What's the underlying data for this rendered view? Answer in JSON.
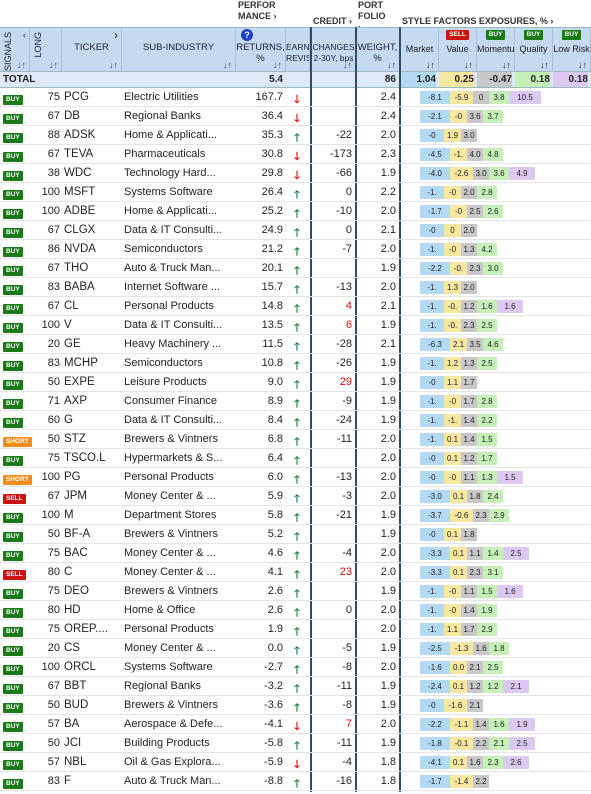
{
  "groups": {
    "performance": "PERFOR MANCE",
    "credit": "CREDIT",
    "portfolio": "PORT FOLIO",
    "style": "STYLE FACTORS EXPOSURES, %"
  },
  "headers": {
    "signals": "SIGNALS",
    "long": "LONG",
    "ticker": "TICKER",
    "sub_industry": "SUB-INDUSTRY",
    "returns": "RETURNS, %",
    "earnings": "EARNING REVISIO",
    "changes": "CHANGES 2-30Y, bps",
    "weight": "WEIGHT, %",
    "sort": "↓↑",
    "help": "?"
  },
  "factors": [
    {
      "name": "Market",
      "badge": ""
    },
    {
      "name": "Value",
      "badge": "SELL"
    },
    {
      "name": "Momentum",
      "badge": "BUY"
    },
    {
      "name": "Quality",
      "badge": "BUY"
    },
    {
      "name": "Low Risk",
      "badge": "BUY"
    }
  ],
  "total": {
    "label": "TOTAL",
    "returns": "5.4",
    "weight": "86",
    "factors": [
      "1.04",
      "0.25",
      "-0.47",
      "0.18",
      "0.18"
    ]
  },
  "colors": {
    "market": "#b3d9f5",
    "value": "#f7e7a1",
    "momentum": "#c8c8c8",
    "quality": "#c5f0b8",
    "lowrisk": "#dcc8f0"
  },
  "rows": [
    {
      "signal": "BUY",
      "long": "75",
      "ticker": "PCG",
      "sub": "Electric Utilities",
      "ret": "167.7",
      "rev": "down",
      "chg": "",
      "wt": "2.4",
      "f": [
        "-8.1",
        "-5.9",
        "0",
        "3.8",
        "10.5"
      ]
    },
    {
      "signal": "BUY",
      "long": "67",
      "ticker": "DB",
      "sub": "Regional Banks",
      "ret": "36.4",
      "rev": "down",
      "chg": "",
      "wt": "2.4",
      "f": [
        "-2.1",
        "-0",
        "3.6",
        "3.7",
        ""
      ]
    },
    {
      "signal": "BUY",
      "long": "88",
      "ticker": "ADSK",
      "sub": "Home & Applicati...",
      "ret": "35.3",
      "rev": "up",
      "chg": "-22",
      "wt": "2.0",
      "f": [
        "-0",
        "1.9",
        "3.0",
        "",
        ""
      ]
    },
    {
      "signal": "BUY",
      "long": "67",
      "ticker": "TEVA",
      "sub": "Pharmaceuticals",
      "ret": "30.8",
      "rev": "down",
      "chg": "-173",
      "wt": "2.3",
      "f": [
        "-4.5",
        "-1.",
        "4.0",
        "4.8",
        ""
      ]
    },
    {
      "signal": "BUY",
      "long": "38",
      "ticker": "WDC",
      "sub": "Technology Hard...",
      "ret": "29.8",
      "rev": "down",
      "chg": "-66",
      "wt": "1.9",
      "f": [
        "-4.0",
        "-2.6",
        "3.0",
        "3.6",
        "4.9"
      ]
    },
    {
      "signal": "BUY",
      "long": "100",
      "ticker": "MSFT",
      "sub": "Systems Software",
      "ret": "26.4",
      "rev": "up",
      "chg": "0",
      "wt": "2.2",
      "f": [
        "-1.",
        "-0",
        "2.0",
        "2.8",
        ""
      ]
    },
    {
      "signal": "BUY",
      "long": "100",
      "ticker": "ADBE",
      "sub": "Home & Applicati...",
      "ret": "25.2",
      "rev": "up",
      "chg": "-10",
      "wt": "2.0",
      "f": [
        "-1.7",
        "-0",
        "2.5",
        "2.6",
        ""
      ]
    },
    {
      "signal": "BUY",
      "long": "67",
      "ticker": "CLGX",
      "sub": "Data & IT Consulti...",
      "ret": "24.9",
      "rev": "up",
      "chg": "0",
      "wt": "2.1",
      "f": [
        "-0",
        "0",
        "2.0",
        "",
        ""
      ]
    },
    {
      "signal": "BUY",
      "long": "86",
      "ticker": "NVDA",
      "sub": "Semiconductors",
      "ret": "21.2",
      "rev": "up",
      "chg": "-7",
      "wt": "2.0",
      "f": [
        "-1.",
        "-0",
        "1.3",
        "4.2",
        ""
      ]
    },
    {
      "signal": "BUY",
      "long": "67",
      "ticker": "THO",
      "sub": "Auto & Truck Man...",
      "ret": "20.1",
      "rev": "up",
      "chg": "",
      "wt": "1.9",
      "f": [
        "-2.2",
        "-0.",
        "2.3",
        "3.0",
        ""
      ]
    },
    {
      "signal": "BUY",
      "long": "83",
      "ticker": "BABA",
      "sub": "Internet Software ...",
      "ret": "15.7",
      "rev": "up",
      "chg": "-13",
      "wt": "2.0",
      "f": [
        "-1.",
        "1.3",
        "2.0",
        "",
        ""
      ]
    },
    {
      "signal": "BUY",
      "long": "67",
      "ticker": "CL",
      "sub": "Personal Products",
      "ret": "14.8",
      "rev": "up",
      "chg": "4",
      "wt": "2.1",
      "f": [
        "-1.",
        "-0.",
        "1.2",
        "1.6",
        "1.6"
      ]
    },
    {
      "signal": "BUY",
      "long": "100",
      "ticker": "V",
      "sub": "Data & IT Consulti...",
      "ret": "13.5",
      "rev": "up",
      "chg": "6",
      "wt": "1.9",
      "f": [
        "-1.",
        "-0.",
        "2.3",
        "2.5",
        ""
      ]
    },
    {
      "signal": "BUY",
      "long": "20",
      "ticker": "GE",
      "sub": "Heavy Machinery ...",
      "ret": "11.5",
      "rev": "up",
      "chg": "-28",
      "wt": "2.1",
      "f": [
        "-6.3",
        "2.1",
        "3.5",
        "4.6",
        ""
      ]
    },
    {
      "signal": "BUY",
      "long": "83",
      "ticker": "MCHP",
      "sub": "Semiconductors",
      "ret": "10.8",
      "rev": "up",
      "chg": "-26",
      "wt": "1.9",
      "f": [
        "-1.",
        "1.2",
        "1.3",
        "2.5",
        ""
      ]
    },
    {
      "signal": "BUY",
      "long": "50",
      "ticker": "EXPE",
      "sub": "Leisure Products",
      "ret": "9.0",
      "rev": "up",
      "chg": "29",
      "wt": "1.9",
      "f": [
        "-0",
        "1.1",
        "1.7",
        "",
        ""
      ]
    },
    {
      "signal": "BUY",
      "long": "71",
      "ticker": "AXP",
      "sub": "Consumer Finance",
      "ret": "8.9",
      "rev": "up",
      "chg": "-9",
      "wt": "1.9",
      "f": [
        "-1.",
        "-0",
        "1.7",
        "2.8",
        ""
      ]
    },
    {
      "signal": "BUY",
      "long": "60",
      "ticker": "G",
      "sub": "Data & IT Consulti...",
      "ret": "8.4",
      "rev": "up",
      "chg": "-24",
      "wt": "1.9",
      "f": [
        "-1.",
        "-1.",
        "1.4",
        "2.2",
        ""
      ]
    },
    {
      "signal": "SHORT",
      "long": "50",
      "ticker": "STZ",
      "sub": "Brewers & Vintners",
      "ret": "6.8",
      "rev": "up",
      "chg": "-11",
      "wt": "2.0",
      "f": [
        "-1.",
        "0.1",
        "1.4",
        "1.5",
        ""
      ]
    },
    {
      "signal": "BUY",
      "long": "75",
      "ticker": "TSCO.L",
      "sub": "Hypermarkets & S...",
      "ret": "6.4",
      "rev": "up",
      "chg": "",
      "wt": "2.0",
      "f": [
        "-0",
        "0.1",
        "1.2",
        "1.7",
        ""
      ]
    },
    {
      "signal": "SHORT",
      "long": "100",
      "ticker": "PG",
      "sub": "Personal Products",
      "ret": "6.0",
      "rev": "up",
      "chg": "-13",
      "wt": "2.0",
      "f": [
        "-0",
        "-0",
        "1.1",
        "1.3",
        "1.5"
      ]
    },
    {
      "signal": "SELL",
      "long": "67",
      "ticker": "JPM",
      "sub": "Money Center & ...",
      "ret": "5.9",
      "rev": "up",
      "chg": "-3",
      "wt": "2.0",
      "f": [
        "-3.0",
        "0.1",
        "1.8",
        "2.4",
        ""
      ]
    },
    {
      "signal": "BUY",
      "long": "100",
      "ticker": "M",
      "sub": "Department Stores",
      "ret": "5.8",
      "rev": "up",
      "chg": "-21",
      "wt": "1.9",
      "f": [
        "-3.7",
        "-0.6",
        "2.3",
        "2.9",
        ""
      ]
    },
    {
      "signal": "BUY",
      "long": "50",
      "ticker": "BF-A",
      "sub": "Brewers & Vintners",
      "ret": "5.2",
      "rev": "up",
      "chg": "",
      "wt": "1.9",
      "f": [
        "-0",
        "0.1",
        "1.8",
        "",
        ""
      ]
    },
    {
      "signal": "BUY",
      "long": "75",
      "ticker": "BAC",
      "sub": "Money Center & ...",
      "ret": "4.6",
      "rev": "up",
      "chg": "-4",
      "wt": "2.0",
      "f": [
        "-3.3",
        "0.1",
        "1.1",
        "1.4",
        "2.5"
      ]
    },
    {
      "signal": "SELL",
      "long": "80",
      "ticker": "C",
      "sub": "Money Center & ...",
      "ret": "4.1",
      "rev": "up",
      "chg": "23",
      "wt": "2.0",
      "f": [
        "-3.3",
        "0.1",
        "2.3",
        "3.1",
        ""
      ]
    },
    {
      "signal": "BUY",
      "long": "75",
      "ticker": "DEO",
      "sub": "Brewers & Vintners",
      "ret": "2.6",
      "rev": "up",
      "chg": "",
      "wt": "1.9",
      "f": [
        "-1.",
        "-0",
        "1.1",
        "1.5",
        "1.6"
      ]
    },
    {
      "signal": "BUY",
      "long": "80",
      "ticker": "HD",
      "sub": "Home & Office",
      "ret": "2.6",
      "rev": "up",
      "chg": "0",
      "wt": "2.0",
      "f": [
        "-1.",
        "-0",
        "1.4",
        "1.9",
        ""
      ]
    },
    {
      "signal": "BUY",
      "long": "75",
      "ticker": "OREP....",
      "sub": "Personal Products",
      "ret": "1.9",
      "rev": "up",
      "chg": "",
      "wt": "2.0",
      "f": [
        "-1.",
        "1.1",
        "1.7",
        "2.9",
        ""
      ]
    },
    {
      "signal": "BUY",
      "long": "20",
      "ticker": "CS",
      "sub": "Money Center & ...",
      "ret": "0.0",
      "rev": "up",
      "chg": "-5",
      "wt": "1.9",
      "f": [
        "-2.5",
        "-1.3",
        "1.6",
        "1.8",
        ""
      ]
    },
    {
      "signal": "BUY",
      "long": "100",
      "ticker": "ORCL",
      "sub": "Systems Software",
      "ret": "-2.7",
      "rev": "up",
      "chg": "-8",
      "wt": "2.0",
      "f": [
        "-1.6",
        "0.0",
        "2.1",
        "2.5",
        ""
      ]
    },
    {
      "signal": "BUY",
      "long": "67",
      "ticker": "BBT",
      "sub": "Regional Banks",
      "ret": "-3.2",
      "rev": "up",
      "chg": "-11",
      "wt": "1.9",
      "f": [
        "-2.4",
        "0.1",
        "1.2",
        "1.2",
        "2.1"
      ]
    },
    {
      "signal": "BUY",
      "long": "50",
      "ticker": "BUD",
      "sub": "Brewers & Vintners",
      "ret": "-3.6",
      "rev": "up",
      "chg": "-8",
      "wt": "1.9",
      "f": [
        "-0",
        "-1.6",
        "2.1",
        "",
        ""
      ]
    },
    {
      "signal": "BUY",
      "long": "57",
      "ticker": "BA",
      "sub": "Aerospace & Defe...",
      "ret": "-4.1",
      "rev": "down",
      "chg": "7",
      "wt": "2.0",
      "f": [
        "-2.2",
        "-1.1",
        "1.4",
        "1.6",
        "1.9"
      ]
    },
    {
      "signal": "BUY",
      "long": "50",
      "ticker": "JCI",
      "sub": "Building Products",
      "ret": "-5.8",
      "rev": "up",
      "chg": "-11",
      "wt": "1.9",
      "f": [
        "-1.8",
        "-0.1",
        "2.2",
        "2.1",
        "2.5"
      ]
    },
    {
      "signal": "BUY",
      "long": "57",
      "ticker": "NBL",
      "sub": "Oil & Gas Explora...",
      "ret": "-5.9",
      "rev": "down",
      "chg": "-4",
      "wt": "1.8",
      "f": [
        "-4.1",
        "0.1",
        "1.6",
        "2.3",
        "2.6"
      ]
    },
    {
      "signal": "BUY",
      "long": "83",
      "ticker": "F",
      "sub": "Auto & Truck Man...",
      "ret": "-8.8",
      "rev": "up",
      "chg": "-16",
      "wt": "1.8",
      "f": [
        "-1.7",
        "-1.4",
        "2.2",
        "",
        ""
      ]
    }
  ]
}
